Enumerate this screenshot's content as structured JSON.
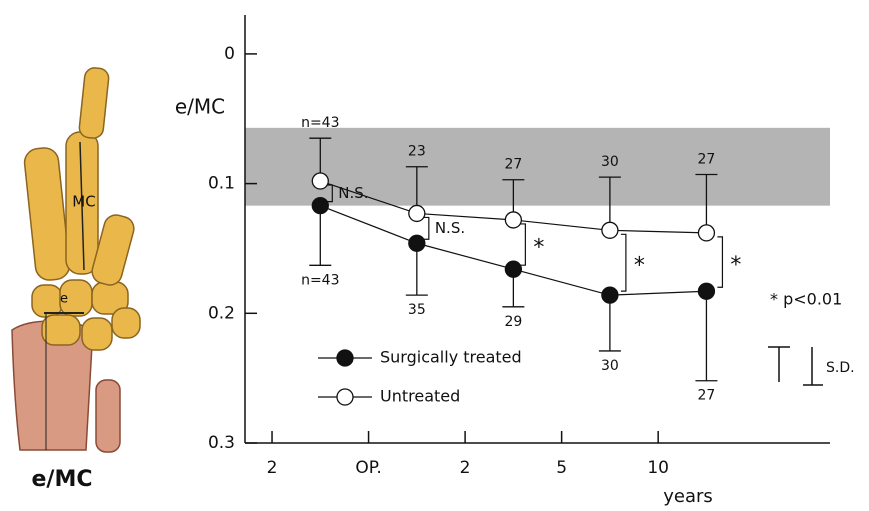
{
  "illustration": {
    "labels": [
      "MC",
      "e"
    ],
    "caption": "e/MC"
  },
  "chart_data": {
    "type": "line",
    "y_label": "e/MC",
    "x_label": "years",
    "xlim": [
      -0.28,
      5.78
    ],
    "xticks": [
      {
        "value": 0,
        "label": "2"
      },
      {
        "value": 1,
        "label": "OP."
      },
      {
        "value": 2,
        "label": "2"
      },
      {
        "value": 3,
        "label": "5"
      },
      {
        "value": 4,
        "label": "10"
      }
    ],
    "ylim": [
      -0.03,
      0.3
    ],
    "yticks": [
      0,
      0.1,
      0.2,
      0.3
    ],
    "y_inverted": true,
    "normal_band": [
      0.057,
      0.117
    ],
    "band_color": "#b4b4b4",
    "x": [
      0.5,
      1.5,
      2.5,
      3.5,
      4.5
    ],
    "series": [
      {
        "name": "Surgically treated",
        "color": "#111111",
        "filled": true,
        "values": [
          0.117,
          0.146,
          0.166,
          0.186,
          0.183
        ],
        "errors": [
          0.046,
          0.04,
          0.029,
          0.043,
          0.069
        ],
        "error_direction": "down",
        "n_labels": [
          "n=43",
          "35",
          "29",
          "30",
          "27"
        ]
      },
      {
        "name": "Untreated",
        "color": "#111111",
        "filled": false,
        "values": [
          0.098,
          0.123,
          0.128,
          0.136,
          0.138
        ],
        "errors": [
          0.033,
          0.036,
          0.031,
          0.041,
          0.045
        ],
        "error_direction": "up",
        "n_labels": [
          "n=43",
          "23",
          "27",
          "30",
          "27"
        ]
      }
    ],
    "annotations": [
      "N.S.",
      "N.S.",
      "*",
      "*",
      "*"
    ],
    "significance_note": "* p<0.01",
    "sd_label": "S.D."
  }
}
